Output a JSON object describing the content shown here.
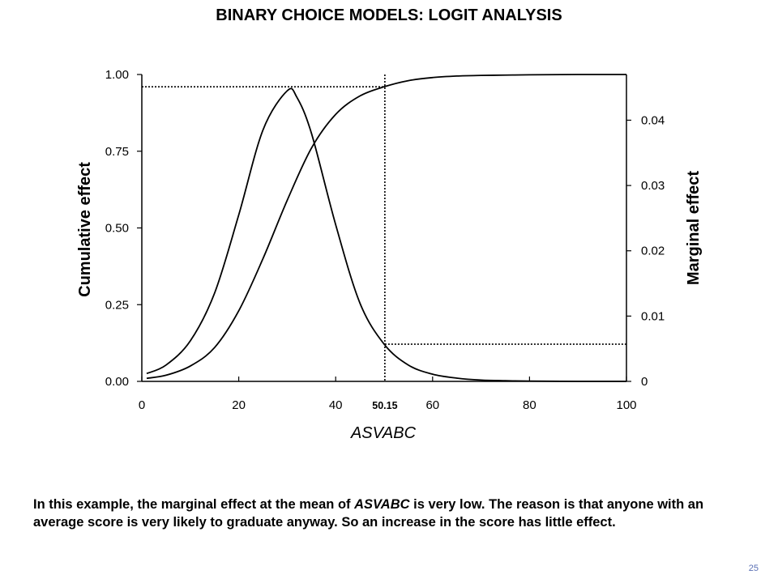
{
  "slide": {
    "title": "BINARY CHOICE MODELS: LOGIT ANALYSIS",
    "caption_parts": [
      {
        "text": "In this example, the marginal effect at the mean of ",
        "italic": false
      },
      {
        "text": "ASVABC",
        "italic": true
      },
      {
        "text": " is very low.  The reason is that anyone with an average score is very likely to graduate anyway.  So an increase in the score has little effect.",
        "italic": false
      }
    ],
    "page_number": "25"
  },
  "chart_data": {
    "type": "line",
    "xlabel": "ASVABC",
    "ylabel_left": "Cumulative effect",
    "ylabel_right": "Marginal effect",
    "xlim": [
      0,
      100
    ],
    "ylim_left": [
      0,
      1
    ],
    "ylim_right": [
      0,
      0.047
    ],
    "x_ticks": [
      "0",
      "20",
      "40",
      "60",
      "80",
      "100"
    ],
    "y_left_ticks": [
      "0.00",
      "0.25",
      "0.50",
      "0.75",
      "1.00"
    ],
    "y_right_ticks": [
      "0",
      "0.01",
      "0.02",
      "0.03",
      "0.04"
    ],
    "mean_x": 50.15,
    "mean_label": "50.15",
    "cumulative_at_mean": 0.96,
    "marginal_at_mean": 0.0057,
    "grid": false,
    "series": [
      {
        "axis": "left",
        "x": [
          1,
          5,
          10,
          15,
          20,
          25,
          30,
          35,
          40,
          45,
          50,
          55,
          60,
          65,
          70,
          75,
          80,
          90,
          100
        ],
        "values": [
          0.01,
          0.02,
          0.05,
          0.11,
          0.23,
          0.4,
          0.59,
          0.76,
          0.87,
          0.93,
          0.96,
          0.98,
          0.99,
          0.995,
          0.997,
          0.998,
          0.999,
          1.0,
          1.0
        ]
      },
      {
        "axis": "right",
        "x": [
          1,
          5,
          10,
          15,
          20,
          25,
          30,
          32,
          35,
          40,
          45,
          50,
          55,
          60,
          65,
          70,
          75,
          80,
          90,
          100
        ],
        "values": [
          0.0012,
          0.0025,
          0.0062,
          0.0135,
          0.0255,
          0.0385,
          0.0445,
          0.0435,
          0.038,
          0.024,
          0.012,
          0.0057,
          0.0025,
          0.0011,
          0.0005,
          0.0002,
          0.0001,
          5e-05,
          0.0,
          0.0
        ]
      }
    ]
  }
}
